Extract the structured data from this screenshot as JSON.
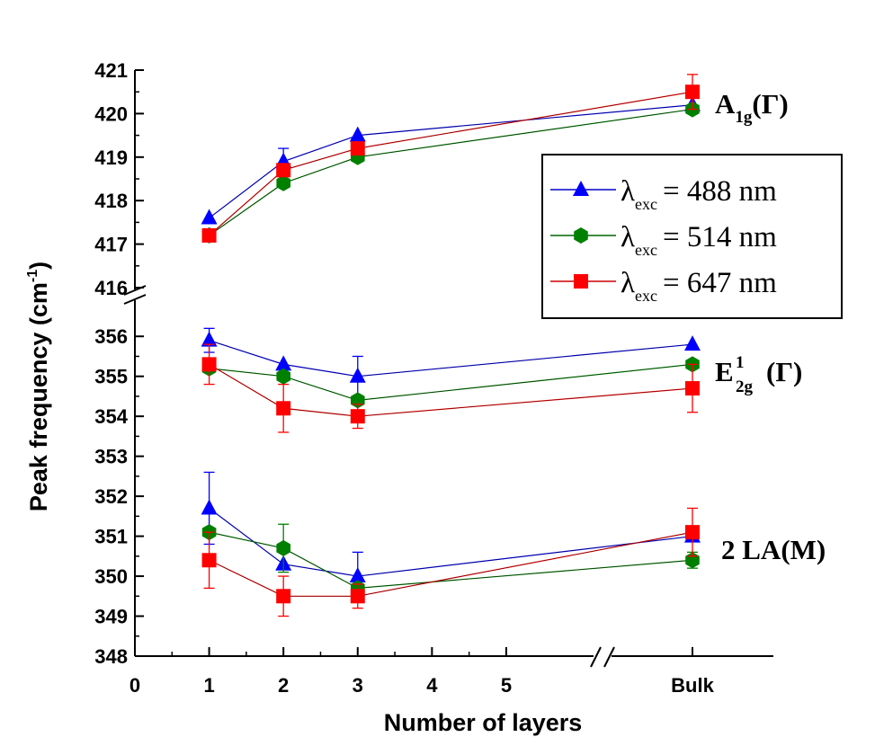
{
  "chart_data": {
    "type": "line",
    "xlabel": "Number of layers",
    "ylabel": "Peak frequency (cm",
    "ylabel_sup": "-1",
    "ylabel_close": ")",
    "x_ticks": [
      "0",
      "1",
      "2",
      "3",
      "4",
      "5",
      "Bulk"
    ],
    "x_tick_values": [
      0,
      1,
      2,
      3,
      4,
      5,
      7.2
    ],
    "xlim": [
      0,
      8.5
    ],
    "x_break": "between 5 and Bulk",
    "y_break": "between 356.5 and 416",
    "panels": [
      {
        "name": "upper",
        "ylim": [
          416,
          421
        ],
        "ticks": [
          416,
          417,
          418,
          419,
          420,
          421
        ]
      },
      {
        "name": "lower",
        "ylim": [
          348,
          356.5
        ],
        "ticks": [
          348,
          349,
          350,
          351,
          352,
          353,
          354,
          355,
          356
        ]
      }
    ],
    "x_positions": [
      1,
      2,
      3,
      7.2
    ],
    "x_labels": [
      "1",
      "2",
      "3",
      "Bulk"
    ],
    "series": [
      {
        "name_main": "λ",
        "name_sub": "exc",
        "name_rest": "= 488 nm",
        "marker": "triangle",
        "color": "#0000ff",
        "groups": {
          "A1g": {
            "values": [
              417.6,
              418.9,
              419.5,
              420.2
            ],
            "errors": [
              0,
              0.3,
              0,
              0
            ]
          },
          "E2g": {
            "values": [
              355.9,
              355.3,
              355.0,
              355.8
            ],
            "errors": [
              0.3,
              0,
              0.5,
              0
            ]
          },
          "2LA": {
            "values": [
              351.7,
              350.3,
              350.0,
              351.0
            ],
            "errors": [
              0.9,
              0,
              0.6,
              0
            ]
          }
        }
      },
      {
        "name_main": "λ",
        "name_sub": "exc",
        "name_rest": "= 514 nm",
        "marker": "hexagon",
        "color": "#008000",
        "groups": {
          "A1g": {
            "values": [
              417.2,
              418.4,
              419.0,
              420.1
            ],
            "errors": [
              0.1,
              0,
              0,
              0
            ]
          },
          "E2g": {
            "values": [
              355.2,
              355.0,
              354.4,
              355.3
            ],
            "errors": [
              0,
              0,
              0,
              0
            ]
          },
          "2LA": {
            "values": [
              351.1,
              350.7,
              349.7,
              350.4
            ],
            "errors": [
              0,
              0.6,
              0,
              0.2
            ]
          }
        }
      },
      {
        "name_main": "λ",
        "name_sub": "exc",
        "name_rest": "= 647 nm",
        "marker": "square",
        "color": "#ff0000",
        "groups": {
          "A1g": {
            "values": [
              417.2,
              418.7,
              419.2,
              420.5
            ],
            "errors": [
              0,
              0,
              0,
              0.4
            ]
          },
          "E2g": {
            "values": [
              355.3,
              354.2,
              354.0,
              354.7
            ],
            "errors": [
              0.5,
              0.6,
              0.3,
              0.6
            ]
          },
          "2LA": {
            "values": [
              350.4,
              349.5,
              349.5,
              351.1
            ],
            "errors": [
              0.7,
              0.5,
              0.3,
              0.6
            ]
          }
        }
      }
    ],
    "annotations": {
      "a1g": {
        "main": "A",
        "sub": "1g",
        "rest": "(Γ)"
      },
      "e2g": {
        "main": "E",
        "sup": "1",
        "sub": "2g",
        "rest": "(Γ)"
      },
      "la": {
        "text": "2 LA(M)"
      }
    },
    "legend_position": "upper-right inside plot"
  }
}
